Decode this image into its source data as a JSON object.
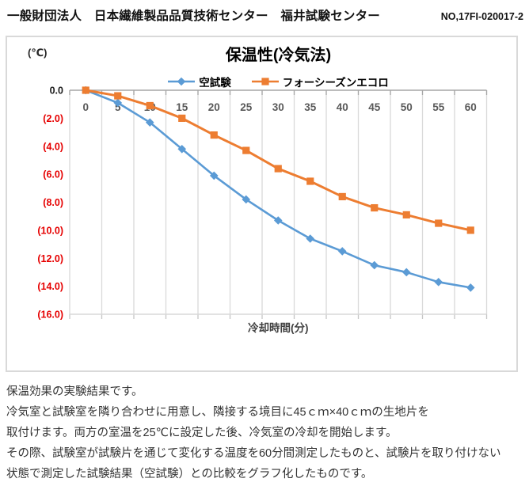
{
  "header": {
    "organization": "一般財団法人　日本繊維製品品質技術センター　福井試験センター",
    "report_no": "NO,17FI-020017-2"
  },
  "chart_data": {
    "type": "line",
    "title": "保温性(冷気法)",
    "y_unit_label": "(℃)",
    "xlabel": "冷却時間(分)",
    "categories": [
      0,
      5,
      10,
      15,
      20,
      25,
      30,
      35,
      40,
      45,
      50,
      55,
      60
    ],
    "series": [
      {
        "name": "空試験",
        "marker": "diamond",
        "color": "#5B9BD5",
        "values": [
          0.0,
          -0.9,
          -2.3,
          -4.2,
          -6.1,
          -7.8,
          -9.3,
          -10.6,
          -11.5,
          -12.5,
          -13.0,
          -13.7,
          -14.1
        ]
      },
      {
        "name": "フォーシーズンエコロ",
        "marker": "square",
        "color": "#ED7D31",
        "values": [
          0.0,
          -0.4,
          -1.1,
          -2.0,
          -3.2,
          -4.3,
          -5.6,
          -6.5,
          -7.6,
          -8.4,
          -8.9,
          -9.5,
          -10.0
        ]
      }
    ],
    "ylim": [
      -16,
      0
    ],
    "ytick_step": 2,
    "ytick_labels": [
      "0.0",
      "(2.0)",
      "(4.0)",
      "(6.0)",
      "(8.0)",
      "(10.0)",
      "(12.0)",
      "(14.0)",
      "(16.0)"
    ],
    "grid": "vertical-only",
    "legend_position": "top-center",
    "axis_labels_position": "inside-top"
  },
  "colors": {
    "series_blue": "#5B9BD5",
    "series_orange": "#ED7D31",
    "ytick_negative": "#e60000",
    "ytick_zero": "#1a1a1a",
    "xtick_label": "#595959",
    "gridline": "#d9d9d9",
    "axis_line": "#a6a6a6",
    "chart_border": "#d9d9d9"
  },
  "body": {
    "lines": [
      "保温効果の実験結果です。",
      "冷気室と試験室を隣り合わせに用意し、隣接する境目に45ｃｍ×40ｃｍの生地片を",
      "取付けます。両方の室温を25℃に設定した後、冷気室の冷却を開始します。",
      "その際、試験室が試験片を通じて変化する温度を60分間測定したものと、試験片を取り付けない",
      "状態で測定した試験結果（空試験）との比較をグラフ化したものです。"
    ]
  }
}
